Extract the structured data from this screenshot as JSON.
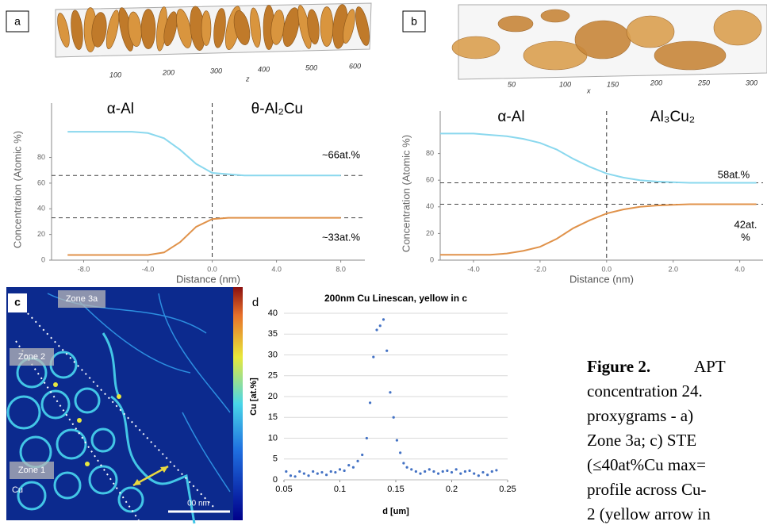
{
  "panel_labels": [
    "a",
    "b",
    "c",
    "d"
  ],
  "panel_a_image": {
    "axis_labels": [
      "100",
      "200",
      "300",
      "400",
      "500",
      "600"
    ],
    "axis_name": "z"
  },
  "panel_b_image": {
    "axis_labels": [
      "50",
      "100",
      "150",
      "200",
      "250",
      "300"
    ],
    "axis_name": "x"
  },
  "panel_c_image": {
    "zones": [
      "Zone 3a",
      "Zone 2",
      "Zone 1"
    ],
    "element": "Cu",
    "scale_bar": "00 nm"
  },
  "caption": {
    "label": "Figure 2.",
    "lines": [
      "APT",
      "concentration 24.",
      "proxygrams - a)",
      "Zone 3a; c) STE",
      "(≤40at%Cu max=",
      "profile across Cu-",
      "2 (yellow arrow in"
    ]
  },
  "chart_data": [
    {
      "type": "line",
      "phase_labels": [
        "α-Al",
        "θ-Al₂Cu"
      ],
      "xlabel": "Distance (nm)",
      "ylabel": "Concentration (Atomic %)",
      "x": [
        -9,
        -8,
        -7,
        -6,
        -5,
        -4,
        -3,
        -2,
        -1,
        0,
        1,
        2,
        3,
        4,
        5,
        6,
        7,
        8
      ],
      "series": [
        {
          "color": "#8ad8ee",
          "values": [
            100,
            100,
            100,
            100,
            100,
            99,
            95,
            86,
            75,
            68,
            67,
            66,
            66,
            66,
            66,
            66,
            66,
            66
          ]
        },
        {
          "color": "#e0924a",
          "values": [
            4,
            4,
            4,
            4,
            4,
            4,
            6,
            14,
            26,
            32,
            33,
            33,
            33,
            33,
            33,
            33,
            33,
            33
          ]
        }
      ],
      "ref_lines": [
        66,
        33
      ],
      "ref_x": 0,
      "annotations": [
        "~66at.%",
        "~33at.%"
      ],
      "xlim": [
        -10,
        9.5
      ],
      "xticks": [
        {
          "value": -8,
          "label": "-8.0"
        },
        {
          "value": -4,
          "label": "-4.0"
        },
        {
          "value": 0,
          "label": "0.0"
        },
        {
          "value": 4,
          "label": "4.0"
        },
        {
          "value": 8,
          "label": "8.0"
        }
      ],
      "ylim": [
        0,
        110
      ],
      "yticks": [
        0,
        20,
        40,
        60,
        80
      ],
      "grid": false
    },
    {
      "type": "line",
      "phase_labels": [
        "α-Al",
        "Al₃Cu₂"
      ],
      "xlabel": "Distance (nm)",
      "ylabel": "Concentration (Atomic %)",
      "x": [
        -5,
        -4.5,
        -4,
        -3.5,
        -3,
        -2.5,
        -2,
        -1.5,
        -1,
        -0.5,
        0,
        0.5,
        1,
        1.5,
        2,
        2.5,
        3,
        3.5,
        4,
        4.5
      ],
      "series": [
        {
          "color": "#8ad8ee",
          "values": [
            95,
            95,
            95,
            94,
            93,
            91,
            88,
            83,
            76,
            70,
            65,
            62,
            60,
            59,
            58.5,
            58,
            58,
            58,
            58,
            58
          ]
        },
        {
          "color": "#e0924a",
          "values": [
            4,
            4,
            4,
            4,
            5,
            7,
            10,
            16,
            24,
            30,
            35,
            38,
            40,
            41,
            41.5,
            42,
            42,
            42,
            42,
            42
          ]
        }
      ],
      "ref_lines": [
        58,
        42
      ],
      "ref_x": 0,
      "annotations": [
        "58at.%",
        "42at.",
        "%"
      ],
      "xlim": [
        -5,
        4.7
      ],
      "xticks": [
        {
          "value": -4,
          "label": "-4.0"
        },
        {
          "value": -2,
          "label": "-2.0"
        },
        {
          "value": 0,
          "label": "0.0"
        },
        {
          "value": 2,
          "label": "2.0"
        },
        {
          "value": 4,
          "label": "4.0"
        }
      ],
      "ylim": [
        0,
        100
      ],
      "yticks": [
        0,
        20,
        40,
        60,
        80
      ],
      "grid": false
    },
    {
      "type": "scatter",
      "title": "200nm Cu Linescan, yellow in c",
      "xlabel": "d [um]",
      "ylabel": "Cu [at.%]",
      "color": "#4472c4",
      "x": [
        0.052,
        0.056,
        0.06,
        0.064,
        0.068,
        0.072,
        0.076,
        0.08,
        0.084,
        0.088,
        0.092,
        0.096,
        0.1,
        0.104,
        0.108,
        0.112,
        0.116,
        0.12,
        0.124,
        0.127,
        0.13,
        0.133,
        0.136,
        0.139,
        0.142,
        0.145,
        0.148,
        0.151,
        0.154,
        0.157,
        0.16,
        0.164,
        0.168,
        0.172,
        0.176,
        0.18,
        0.184,
        0.188,
        0.192,
        0.196,
        0.2,
        0.204,
        0.208,
        0.212,
        0.216,
        0.22,
        0.224,
        0.228,
        0.232,
        0.236,
        0.24
      ],
      "values": [
        2,
        1,
        0.8,
        2,
        1.5,
        1,
        2,
        1.5,
        1.8,
        1.2,
        2,
        1.8,
        2.5,
        2.2,
        3.5,
        3,
        4.5,
        6,
        10,
        18.5,
        29.5,
        36,
        37,
        38.5,
        31,
        21,
        15,
        9.5,
        6.5,
        4,
        3,
        2.5,
        2,
        1.5,
        2,
        2.5,
        2,
        1.5,
        2,
        2.2,
        1.8,
        2.5,
        1.5,
        2,
        2.2,
        1.5,
        1,
        1.8,
        1.2,
        2,
        2.3
      ],
      "xlim": [
        0.05,
        0.25
      ],
      "xticks": [
        0.05,
        0.1,
        0.15,
        0.2,
        0.25
      ],
      "ylim": [
        0,
        40
      ],
      "yticks": [
        0,
        5,
        10,
        15,
        20,
        25,
        30,
        35,
        40
      ],
      "grid": true
    }
  ]
}
